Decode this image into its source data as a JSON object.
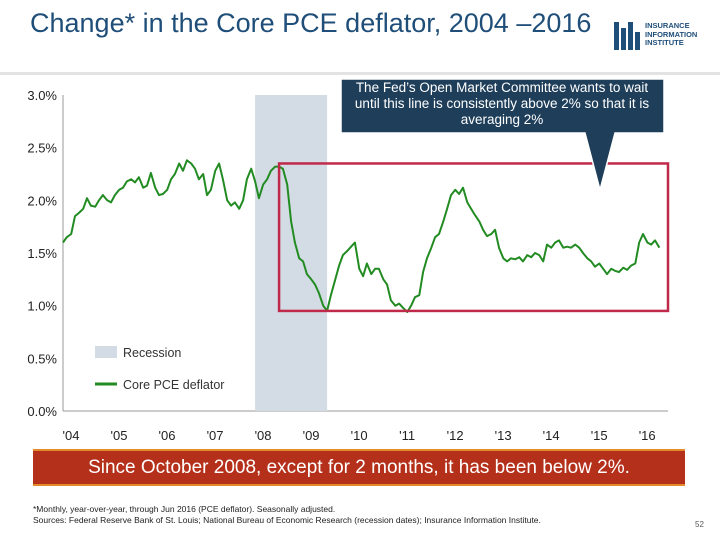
{
  "title": "Change* in the Core PCE deflator, 2004 –2016",
  "logo": {
    "lines": [
      "INSURANCE",
      "INFORMATION",
      "INSTITUTE"
    ]
  },
  "callout": "The Fed’s Open Market Committee wants to wait until this line is consistently above 2% so that it is averaging 2%",
  "banner": "Since October 2008, except for 2 months, it has been below 2%.",
  "footnote": {
    "line1": "*Monthly, year-over-year, through Jun 2016 (PCE deflator). Seasonally adjusted.",
    "line2": "Sources: Federal Reserve Bank of St. Louis; National Bureau of Economic Research (recession dates); Insurance Information Institute."
  },
  "page_number": "52",
  "colors": {
    "line": "#228b22",
    "recession": "#d3dce4",
    "highlight_box": "#c0294a",
    "title": "#1f4e79",
    "banner": "#b5301a"
  },
  "chart_data": {
    "type": "line",
    "xlabels": [
      "'04",
      "'05",
      "'06",
      "'07",
      "'08",
      "'09",
      "'10",
      "'11",
      "'12",
      "'13",
      "'14",
      "'15",
      "'16"
    ],
    "yticks": [
      "0.0%",
      "0.5%",
      "1.0%",
      "1.5%",
      "2.0%",
      "2.5%",
      "3.0%"
    ],
    "ylim": [
      0,
      3.0
    ],
    "xlim": [
      2004.0,
      2016.6
    ],
    "legend": {
      "recession": "Recession",
      "line": "Core PCE deflator",
      "position": "bottom-left"
    },
    "recession": [
      2008.0,
      2009.5
    ],
    "highlight_box": {
      "x": [
        2008.5,
        2016.6
      ],
      "y": [
        0.95,
        2.35
      ]
    },
    "series": [
      {
        "name": "Core PCE deflator",
        "x": [
          2004.0,
          2004.08,
          2004.17,
          2004.25,
          2004.33,
          2004.42,
          2004.5,
          2004.58,
          2004.67,
          2004.75,
          2004.83,
          2004.92,
          2005.0,
          2005.08,
          2005.17,
          2005.25,
          2005.33,
          2005.42,
          2005.5,
          2005.58,
          2005.67,
          2005.75,
          2005.83,
          2005.92,
          2006.0,
          2006.08,
          2006.17,
          2006.25,
          2006.33,
          2006.42,
          2006.5,
          2006.58,
          2006.67,
          2006.75,
          2006.83,
          2006.92,
          2007.0,
          2007.08,
          2007.17,
          2007.25,
          2007.33,
          2007.42,
          2007.5,
          2007.58,
          2007.67,
          2007.75,
          2007.83,
          2007.92,
          2008.0,
          2008.08,
          2008.17,
          2008.25,
          2008.33,
          2008.42,
          2008.5,
          2008.58,
          2008.67,
          2008.75,
          2008.83,
          2008.92,
          2009.0,
          2009.08,
          2009.17,
          2009.25,
          2009.33,
          2009.42,
          2009.5,
          2009.58,
          2009.67,
          2009.75,
          2009.83,
          2009.92,
          2010.0,
          2010.08,
          2010.17,
          2010.25,
          2010.33,
          2010.42,
          2010.5,
          2010.58,
          2010.67,
          2010.75,
          2010.83,
          2010.92,
          2011.0,
          2011.08,
          2011.17,
          2011.25,
          2011.33,
          2011.42,
          2011.5,
          2011.58,
          2011.67,
          2011.75,
          2011.83,
          2011.92,
          2012.0,
          2012.08,
          2012.17,
          2012.25,
          2012.33,
          2012.42,
          2012.5,
          2012.58,
          2012.67,
          2012.75,
          2012.83,
          2012.92,
          2013.0,
          2013.08,
          2013.17,
          2013.25,
          2013.33,
          2013.42,
          2013.5,
          2013.58,
          2013.67,
          2013.75,
          2013.83,
          2013.92,
          2014.0,
          2014.08,
          2014.17,
          2014.25,
          2014.33,
          2014.42,
          2014.5,
          2014.58,
          2014.67,
          2014.75,
          2014.83,
          2014.92,
          2015.0,
          2015.08,
          2015.17,
          2015.25,
          2015.33,
          2015.42,
          2015.5,
          2015.58,
          2015.67,
          2015.75,
          2015.83,
          2015.92,
          2016.0,
          2016.08,
          2016.17,
          2016.25,
          2016.33,
          2016.42
        ],
        "y": [
          1.6,
          1.65,
          1.68,
          1.85,
          1.88,
          1.92,
          2.02,
          1.95,
          1.94,
          2.0,
          2.05,
          2.0,
          1.98,
          2.05,
          2.1,
          2.12,
          2.18,
          2.2,
          2.17,
          2.22,
          2.12,
          2.14,
          2.26,
          2.12,
          2.05,
          2.06,
          2.1,
          2.2,
          2.25,
          2.35,
          2.28,
          2.38,
          2.35,
          2.3,
          2.2,
          2.25,
          2.05,
          2.1,
          2.28,
          2.35,
          2.2,
          2.0,
          1.95,
          1.98,
          1.92,
          2.0,
          2.2,
          2.3,
          2.18,
          2.02,
          2.15,
          2.2,
          2.28,
          2.32,
          2.32,
          2.3,
          2.15,
          1.8,
          1.6,
          1.45,
          1.42,
          1.3,
          1.25,
          1.2,
          1.12,
          1.0,
          0.95,
          1.1,
          1.25,
          1.38,
          1.48,
          1.52,
          1.56,
          1.6,
          1.35,
          1.28,
          1.4,
          1.3,
          1.35,
          1.35,
          1.25,
          1.2,
          1.05,
          1.0,
          1.02,
          0.98,
          0.94,
          1.0,
          1.08,
          1.1,
          1.32,
          1.45,
          1.55,
          1.65,
          1.68,
          1.8,
          1.92,
          2.05,
          2.1,
          2.06,
          2.12,
          1.98,
          1.92,
          1.86,
          1.8,
          1.72,
          1.66,
          1.68,
          1.72,
          1.55,
          1.45,
          1.42,
          1.45,
          1.44,
          1.46,
          1.42,
          1.48,
          1.46,
          1.5,
          1.48,
          1.42,
          1.58,
          1.55,
          1.6,
          1.62,
          1.55,
          1.56,
          1.55,
          1.58,
          1.55,
          1.5,
          1.45,
          1.42,
          1.37,
          1.4,
          1.35,
          1.3,
          1.35,
          1.33,
          1.32,
          1.36,
          1.34,
          1.38,
          1.4,
          1.6,
          1.68,
          1.6,
          1.58,
          1.62,
          1.55
        ]
      }
    ]
  }
}
